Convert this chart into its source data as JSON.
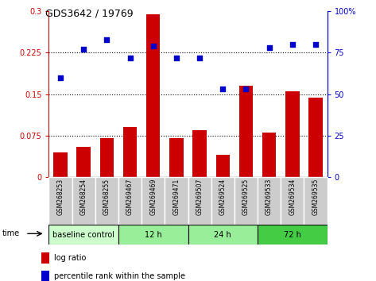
{
  "title": "GDS3642 / 19769",
  "samples": [
    "GSM268253",
    "GSM268254",
    "GSM268255",
    "GSM269467",
    "GSM269469",
    "GSM269471",
    "GSM269507",
    "GSM269524",
    "GSM269525",
    "GSM269533",
    "GSM269534",
    "GSM269535"
  ],
  "log_ratio": [
    0.045,
    0.055,
    0.07,
    0.09,
    0.295,
    0.07,
    0.085,
    0.04,
    0.165,
    0.08,
    0.155,
    0.143
  ],
  "percentile_rank": [
    60,
    77,
    83,
    72,
    79,
    72,
    72,
    53,
    53,
    78,
    80,
    80
  ],
  "bar_color": "#cc0000",
  "dot_color": "#0000cc",
  "ylim_left": [
    0,
    0.3
  ],
  "ylim_right": [
    0,
    100
  ],
  "yticks_left": [
    0,
    0.075,
    0.15,
    0.225,
    0.3
  ],
  "ytick_labels_left": [
    "0",
    "0.075",
    "0.15",
    "0.225",
    "0.3"
  ],
  "yticks_right": [
    0,
    25,
    50,
    75,
    100
  ],
  "ytick_labels_right": [
    "0",
    "25",
    "50",
    "75",
    "100%"
  ],
  "hlines": [
    0.075,
    0.15,
    0.225
  ],
  "group_boundaries": [
    0,
    3,
    6,
    9,
    12
  ],
  "group_labels": [
    "baseline control",
    "12 h",
    "24 h",
    "72 h"
  ],
  "group_colors": [
    "#ccffcc",
    "#99ee99",
    "#99ee99",
    "#44cc44"
  ],
  "xticklabel_bg": "#cccccc",
  "bar_color_legend": "#cc0000",
  "dot_color_legend": "#0000cc",
  "legend_label_bar": "log ratio",
  "legend_label_dot": "percentile rank within the sample",
  "time_label": "time"
}
